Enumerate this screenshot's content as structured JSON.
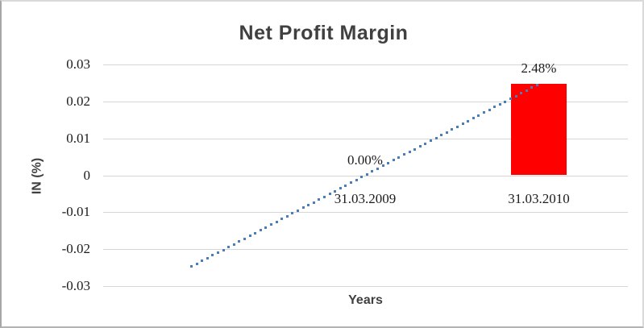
{
  "chart_data": {
    "type": "bar",
    "title": "Net Profit Margin",
    "xlabel": "Years",
    "ylabel": "IN (%)",
    "categories": [
      "31.03.2009",
      "31.03.2010"
    ],
    "values": [
      0.0,
      0.0248
    ],
    "data_labels": [
      "0.00%",
      "2.48%"
    ],
    "y_ticks": [
      {
        "value": 0.03,
        "label": "0.03"
      },
      {
        "value": 0.02,
        "label": "0.02"
      },
      {
        "value": 0.01,
        "label": "0.01"
      },
      {
        "value": 0,
        "label": "0"
      },
      {
        "value": -0.01,
        "label": "-0.01"
      },
      {
        "value": -0.02,
        "label": "-0.02"
      },
      {
        "value": -0.03,
        "label": "-0.03"
      }
    ],
    "ylim": [
      -0.03,
      0.03
    ],
    "grid": true,
    "legend_position": "none",
    "colors": {
      "bar": "#ff0000",
      "trendline": "#4a7ebb",
      "gridline": "#d6d6d6",
      "text": "#1c1c1c",
      "title_text": "#404040"
    },
    "trendline": {
      "type": "linear",
      "style": "dotted",
      "extends_backward_periods": 1
    }
  }
}
